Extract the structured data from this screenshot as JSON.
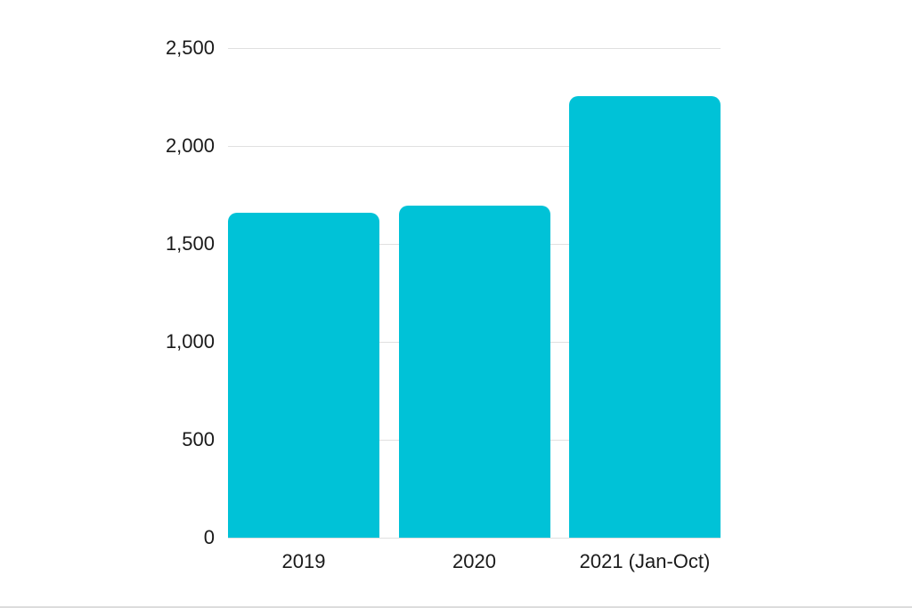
{
  "chart_data": {
    "type": "bar",
    "title": "",
    "xlabel": "",
    "ylabel": "",
    "categories": [
      "2019",
      "2020",
      "2021 (Jan-Oct)"
    ],
    "values": [
      1660,
      1695,
      2255
    ],
    "ylim": [
      0,
      2500
    ],
    "yticks": [
      {
        "value": 0,
        "label": "0"
      },
      {
        "value": 500,
        "label": "500"
      },
      {
        "value": 1000,
        "label": "1,000"
      },
      {
        "value": 1500,
        "label": "1,500"
      },
      {
        "value": 2000,
        "label": "2,000"
      },
      {
        "value": 2500,
        "label": "2,500"
      }
    ],
    "grid": true,
    "legend": false,
    "colors": {
      "bar": "#00c2d7",
      "gridline": "#e0e0e0",
      "text": "#1a1a1a",
      "background": "#ffffff"
    }
  }
}
